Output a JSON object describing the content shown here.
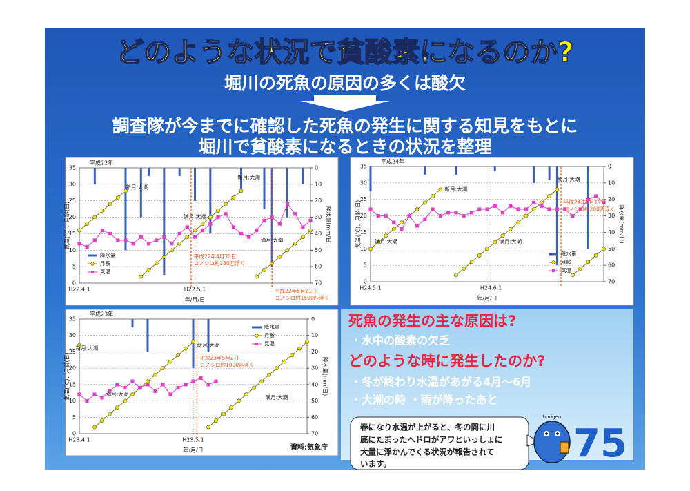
{
  "title": "どのような状況で貧酸素になるのか?",
  "subtitle": "堀川の死魚の原因の多くは酸欠",
  "summary": [
    "調査隊が今までに確認した死魚の発生に関する知見をもとに",
    "堀川で貧酸素になるときの状況を整理"
  ],
  "source": "資料:気象庁",
  "findings": {
    "q1": "死魚の発生の主な原因は?",
    "a1": "・水中の酸素の欠乏",
    "q2": "どのような時に発生したのか?",
    "a2": [
      "・冬が終わり水温があがる4月～6月",
      "・大潮の時 ・雨が降ったあと"
    ]
  },
  "bubble": [
    "春になり水温が上がると、冬の間に川",
    "底にたまったヘドロがアワといっしょに",
    "大量に浮かんでくる状況が報告されて",
    "います。"
  ],
  "mascot": "horigen",
  "page_number": "75",
  "chart_data": [
    {
      "type": "bar-line",
      "title": "平成22年",
      "xlabel": "年/月/日",
      "ylabel": "気温(℃)、月齢(日)",
      "y2label": "降水量(mm/日)",
      "x": [
        0,
        2,
        4,
        6,
        8,
        10,
        12,
        14,
        16,
        18,
        20,
        22,
        24,
        26,
        28,
        30,
        32,
        34,
        36,
        38,
        40,
        42,
        44,
        46,
        48,
        50,
        52,
        54,
        56,
        58,
        60
      ],
      "xlim": [
        0,
        60
      ],
      "xticks": [
        {
          "value": 0,
          "label": "H22.4.1"
        },
        {
          "value": 30,
          "label": "H22.5.1"
        }
      ],
      "ylim": [
        0,
        35
      ],
      "yticks": [
        0,
        5,
        10,
        15,
        20,
        25,
        30,
        35
      ],
      "y2lim": [
        70,
        0
      ],
      "y2ticks": [
        0,
        10,
        20,
        30,
        40,
        50,
        60,
        70
      ],
      "grid": true,
      "legend": "lower-left",
      "series": [
        {
          "name": "降水量",
          "type": "bar",
          "axis": "y2",
          "color": "#3b5fb5",
          "values": [
            0,
            0,
            10,
            0,
            0,
            0,
            50,
            0,
            30,
            5,
            0,
            65,
            0,
            5,
            0,
            20,
            0,
            40,
            0,
            0,
            0,
            15,
            0,
            0,
            25,
            60,
            0,
            30,
            0,
            10,
            0
          ]
        },
        {
          "name": "月齢",
          "type": "line",
          "marker": "circle",
          "color": "#f2e600",
          "values": [
            16,
            18,
            20,
            22,
            24,
            26,
            28,
            null,
            2,
            4,
            6,
            8,
            10,
            12,
            14,
            16,
            18,
            20,
            22,
            24,
            26,
            28,
            null,
            2,
            4,
            6,
            8,
            10,
            12,
            14,
            16
          ]
        },
        {
          "name": "気温",
          "type": "line",
          "marker": "square",
          "color": "#e040c8",
          "values": [
            12,
            11,
            13,
            16,
            15,
            13,
            13,
            12,
            14,
            12,
            13,
            14,
            12,
            15,
            17,
            14,
            16,
            18,
            20,
            21,
            17,
            15,
            14,
            16,
            19,
            20,
            18,
            24,
            21,
            17,
            19
          ]
        }
      ],
      "annotations": [
        "新月:大潮",
        "満月:大潮",
        "新月:大潮",
        "満月:大潮"
      ],
      "events": [
        {
          "x": 29,
          "label": [
            "平成22年4月30日",
            "コノシロ約150匹浮く"
          ]
        },
        {
          "x": 50,
          "label": [
            "平成22年5月21日",
            "コノシロ約1500匹浮く"
          ]
        }
      ]
    },
    {
      "type": "bar-line",
      "title": "平成24年",
      "xlabel": "年/月/日",
      "ylabel": "気温(℃)、月齢(日)",
      "y2label": "降水量(mm/日)",
      "x": [
        0,
        2,
        4,
        6,
        8,
        10,
        12,
        14,
        16,
        18,
        20,
        22,
        24,
        26,
        28,
        30,
        32,
        34,
        36,
        38,
        40,
        42,
        44,
        46,
        48,
        50,
        52,
        54,
        56,
        58,
        60
      ],
      "xlim": [
        0,
        60
      ],
      "xticks": [
        {
          "value": 0,
          "label": "H24.5.1"
        },
        {
          "value": 31,
          "label": "H24.6.1"
        }
      ],
      "ylim": [
        0,
        35
      ],
      "yticks": [
        0,
        5,
        10,
        15,
        20,
        25,
        30,
        35
      ],
      "y2lim": [
        70,
        0
      ],
      "y2ticks": [
        0,
        10,
        20,
        30,
        40,
        50,
        60,
        70
      ],
      "grid": true,
      "legend": "lower-right",
      "series": [
        {
          "name": "降水量",
          "type": "bar",
          "axis": "y2",
          "color": "#3b5fb5",
          "values": [
            15,
            0,
            0,
            0,
            0,
            0,
            0,
            5,
            0,
            0,
            0,
            5,
            0,
            0,
            0,
            0,
            3,
            0,
            0,
            0,
            0,
            10,
            0,
            8,
            60,
            0,
            0,
            0,
            50,
            0,
            0
          ]
        },
        {
          "name": "月齢",
          "type": "line",
          "marker": "circle",
          "color": "#f2e600",
          "values": [
            10,
            12,
            14,
            16,
            18,
            20,
            22,
            24,
            26,
            28,
            null,
            2,
            4,
            6,
            8,
            10,
            12,
            14,
            16,
            18,
            20,
            22,
            24,
            26,
            28,
            null,
            2,
            4,
            6,
            8,
            10
          ]
        },
        {
          "name": "気温",
          "type": "line",
          "marker": "square",
          "color": "#e040c8",
          "values": [
            22,
            20,
            20,
            18,
            16,
            20,
            17,
            19,
            22,
            20,
            21,
            21,
            20,
            21,
            22,
            22,
            23,
            21,
            23,
            22,
            22,
            24,
            23,
            22,
            22,
            22,
            20,
            22,
            25,
            26,
            24
          ]
        }
      ],
      "annotations": [
        "新月:大潮",
        "満月:大潮",
        "新月:大潮",
        "満月:大潮"
      ],
      "events": [
        {
          "x": 49,
          "label": [
            "平成24年6月19日",
            "コノシロ約200匹浮く"
          ]
        }
      ]
    },
    {
      "type": "bar-line",
      "title": "平成23年",
      "xlabel": "年/月/日",
      "ylabel": "気温(℃)、月齢(日)",
      "y2label": "降水量(mm/日)",
      "x": [
        0,
        2,
        4,
        6,
        8,
        10,
        12,
        14,
        16,
        18,
        20,
        22,
        24,
        26,
        28,
        30,
        32,
        34,
        36,
        38,
        40,
        42,
        44,
        46,
        48,
        50,
        52,
        54,
        56,
        58,
        60
      ],
      "xlim": [
        0,
        60
      ],
      "xticks": [
        {
          "value": 0,
          "label": "H23.4.1"
        },
        {
          "value": 30,
          "label": "H23.5.1"
        }
      ],
      "ylim": [
        0,
        35
      ],
      "yticks": [
        0,
        5,
        10,
        15,
        20,
        25,
        30,
        35
      ],
      "y2lim": [
        70,
        0
      ],
      "y2ticks": [
        0,
        10,
        20,
        30,
        40,
        50,
        60,
        70
      ],
      "grid": true,
      "legend": "upper-right",
      "series": [
        {
          "name": "降水量",
          "type": "bar",
          "axis": "y2",
          "color": "#3b5fb5",
          "values": [
            0,
            0,
            0,
            0,
            0,
            0,
            0,
            5,
            0,
            20,
            0,
            0,
            0,
            0,
            0,
            30,
            0,
            20,
            0,
            null,
            null,
            null,
            null,
            null,
            null,
            null,
            null,
            null,
            null,
            null,
            null
          ]
        },
        {
          "name": "月齢",
          "type": "line",
          "marker": "circle",
          "color": "#f2e600",
          "values": [
            27,
            null,
            2,
            4,
            6,
            8,
            10,
            12,
            14,
            16,
            18,
            20,
            22,
            24,
            26,
            28,
            null,
            2,
            4,
            6,
            8,
            10,
            12,
            14,
            16,
            18,
            20,
            22,
            24,
            26,
            28
          ]
        },
        {
          "name": "気温",
          "type": "line",
          "marker": "square",
          "color": "#e040c8",
          "values": [
            12,
            10,
            12,
            11,
            13,
            15,
            14,
            16,
            14,
            15,
            13,
            15,
            12,
            14,
            15,
            16,
            17,
            15,
            16,
            null,
            null,
            null,
            null,
            null,
            null,
            null,
            null,
            null,
            null,
            null,
            null
          ]
        }
      ],
      "annotations": [
        "新月:大潮",
        "満月:大潮",
        "新月:大潮",
        "満月:大潮"
      ],
      "events": [
        {
          "x": 31,
          "label": [
            "平成23年5月2日",
            "コノシロ約1000匹浮く"
          ]
        }
      ]
    }
  ]
}
